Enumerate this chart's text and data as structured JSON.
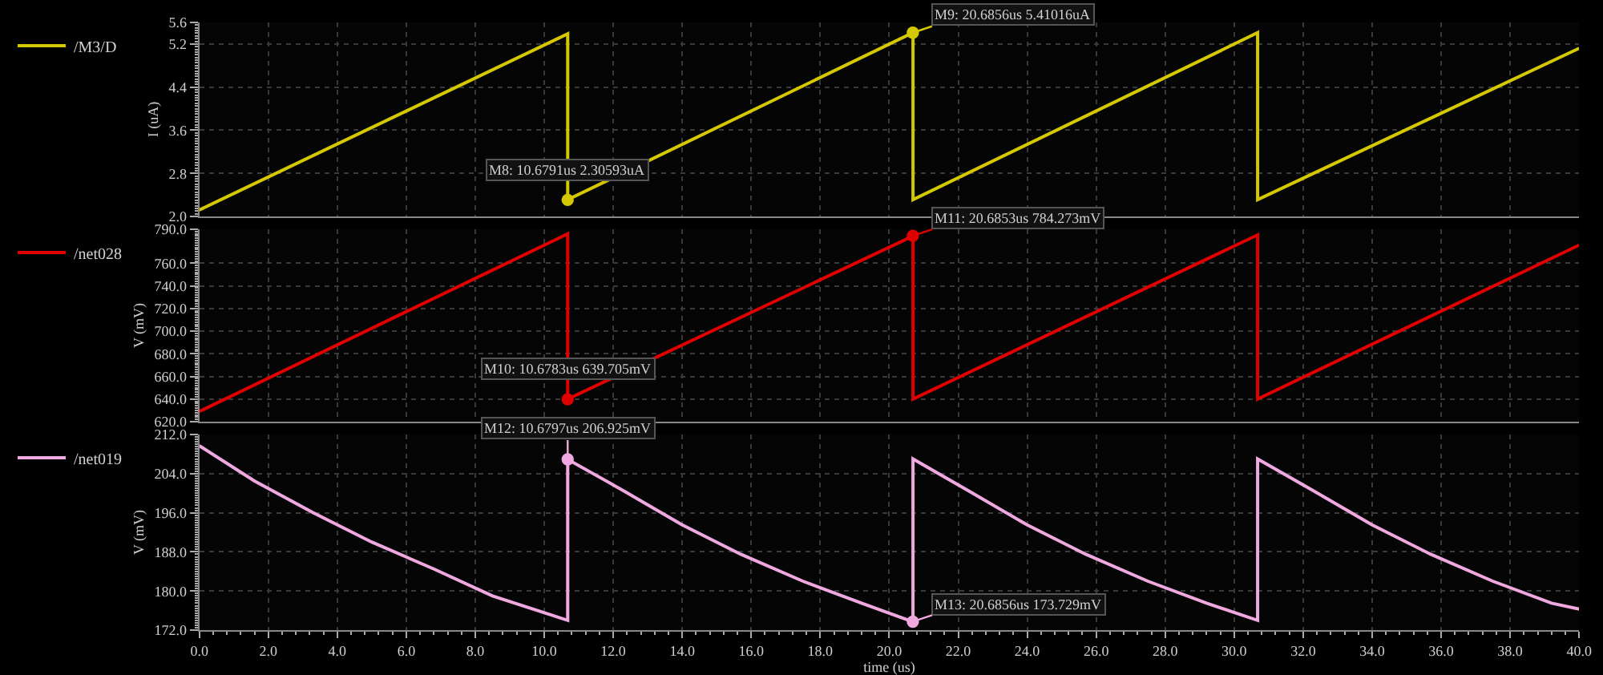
{
  "chart_data": [
    {
      "type": "line",
      "ylabel": "I (uA)",
      "xlim": [
        0,
        40
      ],
      "ylim": [
        2.0,
        5.6
      ],
      "tick_labels": "y",
      "grid": true,
      "legend": "left",
      "marker": "none",
      "line_style": "solid",
      "xticks": [
        {
          "value": 0,
          "label": null
        },
        {
          "value": 2,
          "label": null
        },
        {
          "value": 4,
          "label": null
        },
        {
          "value": 6,
          "label": null
        },
        {
          "value": 8,
          "label": null
        },
        {
          "value": 10,
          "label": null
        },
        {
          "value": 12,
          "label": null
        },
        {
          "value": 14,
          "label": null
        },
        {
          "value": 16,
          "label": null
        },
        {
          "value": 18,
          "label": null
        },
        {
          "value": 20,
          "label": null
        },
        {
          "value": 22,
          "label": null
        },
        {
          "value": 24,
          "label": null
        },
        {
          "value": 26,
          "label": null
        },
        {
          "value": 28,
          "label": null
        },
        {
          "value": 30,
          "label": null
        },
        {
          "value": 32,
          "label": null
        },
        {
          "value": 34,
          "label": null
        },
        {
          "value": 36,
          "label": null
        },
        {
          "value": 38,
          "label": null
        },
        {
          "value": 40,
          "label": null
        }
      ],
      "yticks": [
        {
          "value": 2.0,
          "label": "2.0"
        },
        2.8,
        3.6,
        4.4,
        5.2,
        5.6
      ],
      "series": [
        {
          "name": "/M3/D",
          "color": "#d4c800",
          "x": [
            0,
            10.68,
            10.68,
            20.69,
            20.69,
            30.68,
            30.68,
            40
          ],
          "values": [
            2.12,
            5.39,
            2.31,
            5.41,
            2.31,
            5.41,
            2.31,
            5.12
          ]
        }
      ],
      "annotations": [
        {
          "text": "M8: 10.6791us 2.30593uA",
          "x": 10.6791,
          "y": 2.30593
        },
        {
          "text": "M9: 20.6856us 5.41016uA",
          "x": 20.6856,
          "y": 5.41016
        }
      ]
    },
    {
      "type": "line",
      "ylabel": "V (mV)",
      "xlim": [
        0,
        40
      ],
      "ylim": [
        620,
        790
      ],
      "tick_labels": "y",
      "grid": true,
      "legend": "left",
      "marker": "none",
      "line_style": "solid",
      "xticks": [
        {
          "value": 0,
          "label": null
        },
        {
          "value": 2,
          "label": null
        },
        {
          "value": 4,
          "label": null
        },
        {
          "value": 6,
          "label": null
        },
        {
          "value": 8,
          "label": null
        },
        {
          "value": 10,
          "label": null
        },
        {
          "value": 12,
          "label": null
        },
        {
          "value": 14,
          "label": null
        },
        {
          "value": 16,
          "label": null
        },
        {
          "value": 18,
          "label": null
        },
        {
          "value": 20,
          "label": null
        },
        {
          "value": 22,
          "label": null
        },
        {
          "value": 24,
          "label": null
        },
        {
          "value": 26,
          "label": null
        },
        {
          "value": 28,
          "label": null
        },
        {
          "value": 30,
          "label": null
        },
        {
          "value": 32,
          "label": null
        },
        {
          "value": 34,
          "label": null
        },
        {
          "value": 36,
          "label": null
        },
        {
          "value": 38,
          "label": null
        },
        {
          "value": 40,
          "label": null
        }
      ],
      "yticks": [
        {
          "value": 620,
          "label": "620.0"
        },
        {
          "value": 640,
          "label": "640.0"
        },
        {
          "value": 660,
          "label": "660.0"
        },
        {
          "value": 680,
          "label": "680.0"
        },
        {
          "value": 700,
          "label": "700.0"
        },
        {
          "value": 720,
          "label": "720.0"
        },
        {
          "value": 740,
          "label": "740.0"
        },
        {
          "value": 760,
          "label": "760.0"
        },
        {
          "value": 790,
          "label": "790.0"
        }
      ],
      "series": [
        {
          "name": "/net028",
          "color": "#e00000",
          "x": [
            0,
            10.68,
            10.68,
            20.69,
            20.69,
            30.68,
            30.68,
            40
          ],
          "values": [
            629,
            786,
            640,
            784,
            640,
            785,
            640,
            776
          ]
        }
      ],
      "annotations": [
        {
          "text": "M10: 10.6783us 639.705mV",
          "x": 10.6783,
          "y": 639.705
        },
        {
          "text": "M11: 20.6853us 784.273mV",
          "x": 20.6853,
          "y": 784.273
        }
      ]
    },
    {
      "type": "line",
      "ylabel": "V (mV)",
      "xlabel": "time (us)",
      "xlim": [
        0,
        40
      ],
      "ylim": [
        172,
        212
      ],
      "grid": true,
      "legend": "left",
      "marker": "none",
      "line_style": "solid",
      "xticks": [
        {
          "value": 0,
          "label": "0.0"
        },
        {
          "value": 2,
          "label": "2.0"
        },
        {
          "value": 4,
          "label": "4.0"
        },
        {
          "value": 6,
          "label": "6.0"
        },
        {
          "value": 8,
          "label": "8.0"
        },
        {
          "value": 10,
          "label": "10.0"
        },
        {
          "value": 12,
          "label": "12.0"
        },
        {
          "value": 14,
          "label": "14.0"
        },
        {
          "value": 16,
          "label": "16.0"
        },
        {
          "value": 18,
          "label": "18.0"
        },
        {
          "value": 20,
          "label": "20.0"
        },
        {
          "value": 22,
          "label": "22.0"
        },
        {
          "value": 24,
          "label": "24.0"
        },
        {
          "value": 26,
          "label": "26.0"
        },
        {
          "value": 28,
          "label": "28.0"
        },
        {
          "value": 30,
          "label": "30.0"
        },
        {
          "value": 32,
          "label": "32.0"
        },
        {
          "value": 34,
          "label": "34.0"
        },
        {
          "value": 36,
          "label": "36.0"
        },
        {
          "value": 38,
          "label": "38.0"
        },
        {
          "value": 40,
          "label": "40.0"
        }
      ],
      "yticks": [
        {
          "value": 172,
          "label": "172.0"
        },
        {
          "value": 180,
          "label": "180.0"
        },
        {
          "value": 188,
          "label": "188.0"
        },
        {
          "value": 196,
          "label": "196.0"
        },
        {
          "value": 204,
          "label": "204.0"
        },
        {
          "value": 212,
          "label": "212.0"
        }
      ],
      "series": [
        {
          "name": "/net019",
          "color": "#f0a8e0",
          "x": [
            0,
            1.6,
            3.3,
            5,
            6.8,
            8.5,
            10.68,
            10.68,
            12.3,
            14,
            15.7,
            17.5,
            19.2,
            20.69,
            20.69,
            22.3,
            24,
            25.7,
            27.5,
            29.2,
            30.68,
            30.68,
            32.3,
            34,
            35.7,
            37.5,
            39.2,
            40
          ],
          "values": [
            209.7,
            202.5,
            196,
            190,
            184.5,
            179,
            174,
            206.9,
            200.5,
            193.5,
            187.5,
            182,
            177.5,
            173.7,
            207,
            200.5,
            193.5,
            187.5,
            182,
            177.5,
            174,
            207,
            200.5,
            193.5,
            187.5,
            182,
            177.5,
            176.3
          ]
        }
      ],
      "annotations": [
        {
          "text": "M12: 10.6797us 206.925mV",
          "x": 10.6797,
          "y": 206.925
        },
        {
          "text": "M13: 20.6856us 173.729mV",
          "x": 20.6856,
          "y": 173.729
        }
      ]
    }
  ]
}
